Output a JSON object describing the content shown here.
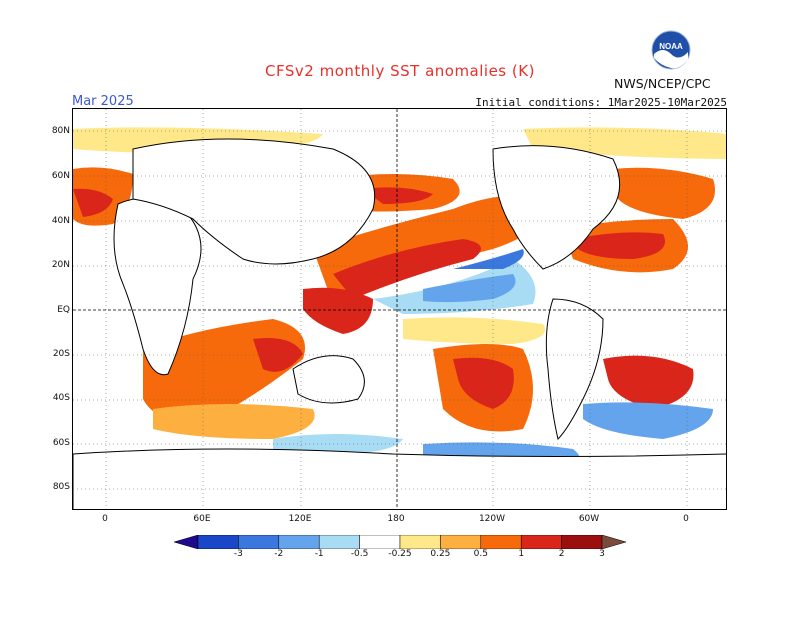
{
  "title": "CFSv2 monthly SST anomalies (K)",
  "month": "Mar 2025",
  "initial_conditions": "Initial conditions: 1Mar2025-10Mar2025",
  "agency": "NWS/NCEP/CPC",
  "logo_text": "NOAA",
  "lat_labels": [
    "80N",
    "60N",
    "40N",
    "20N",
    "EQ",
    "20S",
    "40S",
    "60S",
    "80S"
  ],
  "lon_labels": [
    "0",
    "60E",
    "120E",
    "180",
    "120W",
    "60W",
    "0"
  ],
  "colorbar": {
    "labels": [
      "-3",
      "-2",
      "-1",
      "-0.5",
      "-0.25",
      "0.25",
      "0.5",
      "1",
      "2",
      "3"
    ],
    "colors": [
      "#1e0a8c",
      "#1a46c8",
      "#3a78e0",
      "#63a4ec",
      "#a8dcf4",
      "#ffffff",
      "#ffe88a",
      "#fdb040",
      "#f76a0c",
      "#d9251a",
      "#9c0f0f",
      "#7a4a3a"
    ]
  },
  "colors": {
    "title": "#e8302a",
    "month": "#3b5bd1",
    "land": "#ffffff",
    "coast": "#000000",
    "warm1": "#ffe88a",
    "warm2": "#fdb040",
    "warm3": "#f76a0c",
    "warm4": "#d9251a",
    "cool1": "#a8dcf4",
    "cool2": "#63a4ec",
    "cool3": "#3a78e0"
  }
}
